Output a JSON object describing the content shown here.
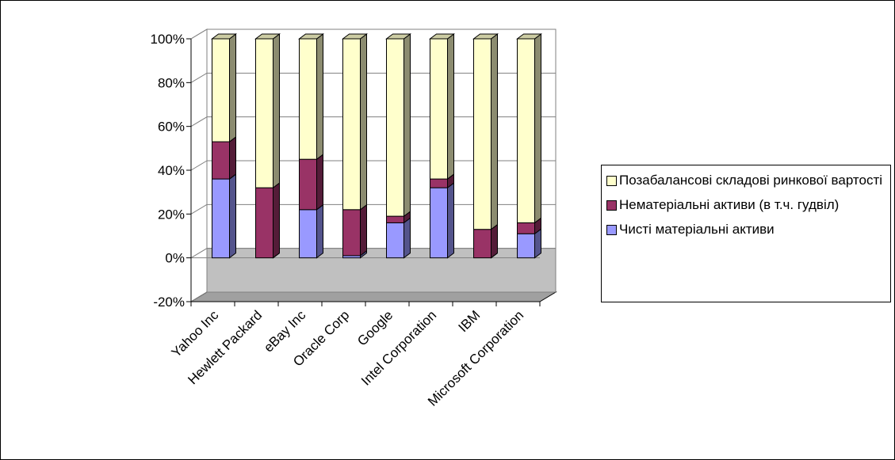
{
  "chart_data": {
    "type": "bar",
    "stacked": true,
    "percent_stacked": true,
    "three_d": true,
    "categories": [
      "Yahoo Inc",
      "Hewlett Packard",
      "eBay Inc",
      "Oracle Corp",
      "Google",
      "Intel Corporation",
      "IBM",
      "Microsoft  Corporation"
    ],
    "series": [
      {
        "name": "Чисті матеріальні активи",
        "values": [
          36,
          0,
          22,
          1,
          16,
          32,
          0,
          11
        ],
        "color": "#9999ff"
      },
      {
        "name": "Нематеріальні активи (в т.ч. гудвіл)",
        "values": [
          17,
          32,
          23,
          21,
          3,
          4,
          13,
          5
        ],
        "color": "#993366"
      },
      {
        "name": "Позабалансові складові ринкової вартості",
        "values": [
          47,
          68,
          55,
          78,
          81,
          64,
          87,
          84
        ],
        "color": "#ffffcc"
      }
    ],
    "legend_order": [
      2,
      1,
      0
    ],
    "ylim": [
      -20,
      100
    ],
    "yticks": [
      "100%",
      "80%",
      "60%",
      "40%",
      "20%",
      "0%",
      "-20%"
    ],
    "ytick_values": [
      100,
      80,
      60,
      40,
      20,
      0,
      -20
    ],
    "title": "",
    "xlabel": "",
    "ylabel": "",
    "floor_color": "#c0c0c0",
    "legend_position": "right"
  }
}
